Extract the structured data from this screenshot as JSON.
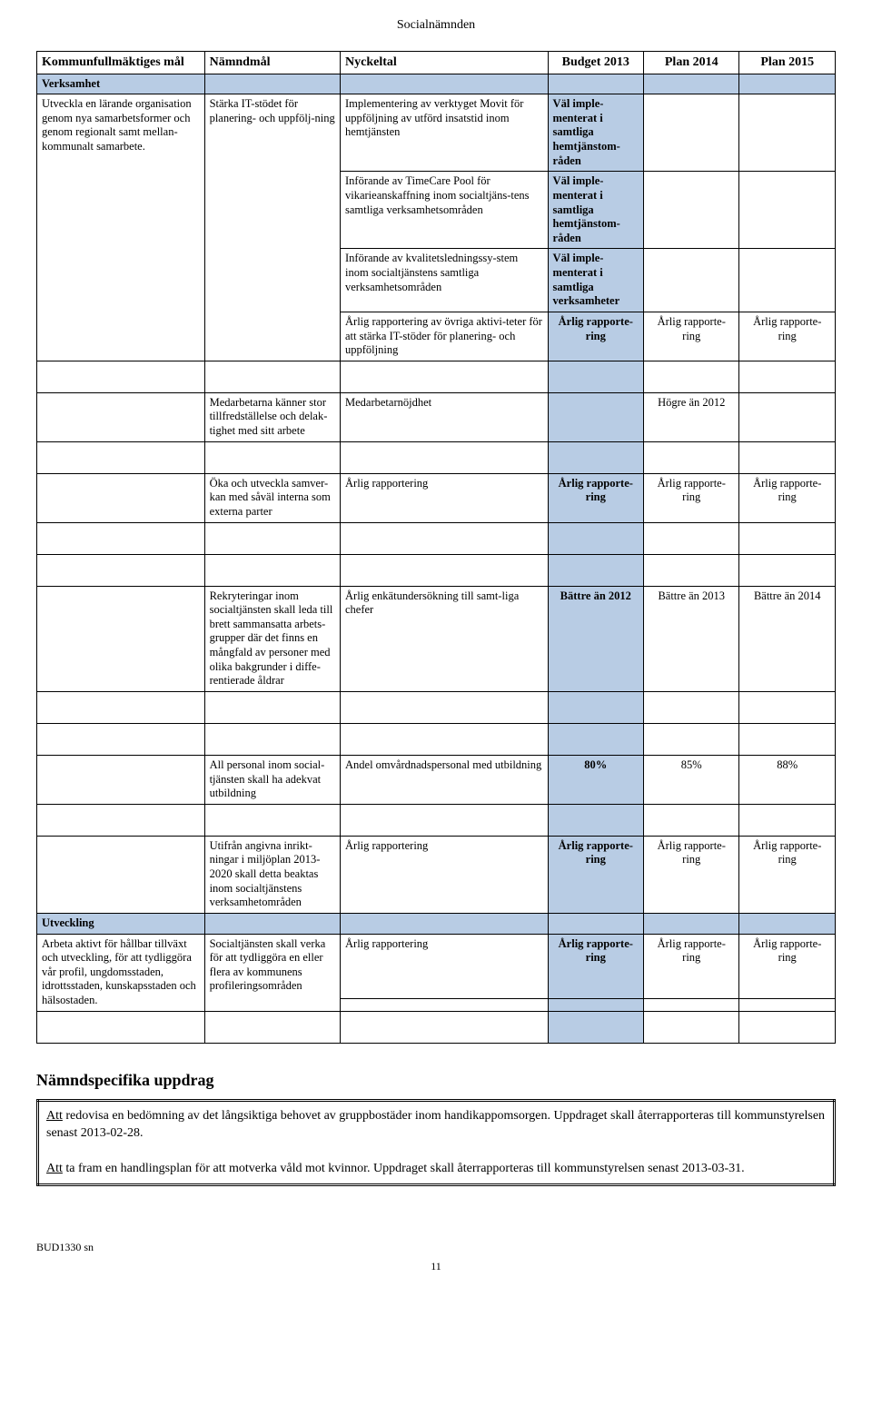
{
  "header": "Socialnämnden",
  "table": {
    "headers": {
      "col1": "Kommunfullmäktiges mål",
      "col2": "Nämndmål",
      "col3": "Nyckeltal",
      "col4": "Budget 2013",
      "col5": "Plan 2014",
      "col6": "Plan 2015"
    },
    "section1": "Verksamhet",
    "row1": {
      "goal": "Utveckla en lärande organisation genom nya samarbetsformer och genom regionalt samt mellan-kommunalt samarbete.",
      "namndmal": "Stärka IT-stödet för planering- och uppfölj-ning",
      "k1": "Implementering av verktyget Movit för uppföljning av utförd insatstid inom hemtjänsten",
      "v1": "Väl imple-menterat i samtliga hemtjänstom-råden",
      "k2": "Införande av TimeCare Pool för vikarieanskaffning inom socialtjäns-tens samtliga verksamhetsområden",
      "v2": "Väl imple-menterat i samtliga hemtjänstom-råden",
      "k3": "Införande av kvalitetsledningssy-stem inom socialtjänstens samtliga verksamhetsområden",
      "v3": "Väl imple-menterat i samtliga verksamheter",
      "k4": "Årlig rapportering av övriga aktivi-teter för att stärka IT-stöder för planering- och uppföljning",
      "v4a": "Årlig rapporte-ring",
      "v4b": "Årlig rapporte-ring",
      "v4c": "Årlig rapporte-ring"
    },
    "row2": {
      "namndmal": "Medarbetarna känner stor tillfredställelse och delak-tighet med sitt arbete",
      "k": "Medarbetarnöjdhet",
      "v5": "Högre än 2012"
    },
    "row3": {
      "namndmal": "Öka och utveckla samver-kan med såväl interna som externa parter",
      "k": "Årlig rapportering",
      "v4": "Årlig rapporte-ring",
      "v5": "Årlig rapporte-ring",
      "v6": "Årlig rapporte-ring"
    },
    "row4": {
      "namndmal": "Rekryteringar inom socialtjänsten skall leda till brett sammansatta arbets-grupper där det finns en mångfald av personer med olika bakgrunder i diffe-rentierade åldrar",
      "k": "Årlig enkätundersökning till samt-liga chefer",
      "v4": "Bättre än 2012",
      "v5": "Bättre än 2013",
      "v6": "Bättre än 2014"
    },
    "row5": {
      "namndmal": "All personal inom social-tjänsten skall ha adekvat utbildning",
      "k": "Andel omvårdnadspersonal med utbildning",
      "v4": "80%",
      "v5": "85%",
      "v6": "88%"
    },
    "row6": {
      "namndmal": "Utifrån angivna inrikt-ningar i miljöplan 2013-2020 skall detta beaktas inom socialtjänstens verksamhetområden",
      "k": "Årlig rapportering",
      "v4": "Årlig rapporte-ring",
      "v5": "Årlig rapporte-ring",
      "v6": "Årlig rapporte-ring"
    },
    "section2": "Utveckling",
    "row7": {
      "goal": "Arbeta aktivt för hållbar tillväxt och utveckling, för att tydliggöra vår profil, ungdomsstaden, idrottsstaden, kunskapsstaden och hälsostaden.",
      "namndmal": "Socialtjänsten skall verka för att tydliggöra en eller flera av kommunens profileringsområden",
      "k": "Årlig rapportering",
      "v4": "Årlig rapporte-ring",
      "v5": "Årlig rapporte-ring",
      "v6": "Årlig rapporte-ring"
    }
  },
  "uppdrag": {
    "heading": "Nämndspecifika uppdrag",
    "p1a": "Att",
    "p1b": " redovisa en bedömning av det långsiktiga behovet av gruppbostäder inom handikappomsorgen. Uppdraget skall återrapporteras till kommunstyrelsen senast 2013-02-28.",
    "p2a": "Att",
    "p2b": " ta fram en handlingsplan för att motverka våld mot kvinnor. Uppdraget skall återrapporteras till kommunstyrelsen senast 2013-03-31."
  },
  "footer": {
    "ref": "BUD1330 sn",
    "page": "11"
  }
}
